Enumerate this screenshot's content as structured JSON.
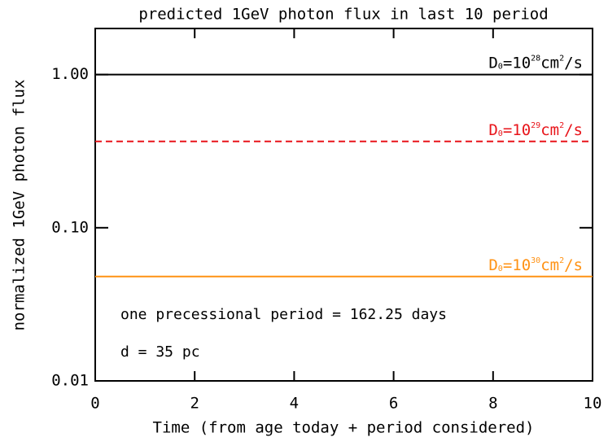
{
  "chart_data": {
    "type": "line",
    "title": "predicted 1GeV photon flux in last 10 period",
    "xlabel": "Time (from age today +  period considered)",
    "ylabel": "normalized 1GeV photon flux",
    "x": [
      0,
      10
    ],
    "xlim": [
      0,
      10
    ],
    "xticks": [
      0,
      2,
      4,
      6,
      8,
      10
    ],
    "ylim": [
      0.01,
      2
    ],
    "yticks": [
      0.01,
      {
        "value": 0.1,
        "label": "0.10"
      },
      {
        "value": 1,
        "label": "1.00"
      }
    ],
    "ylog": true,
    "series": [
      {
        "label": [
          "D",
          "0",
          "=10",
          "28",
          "cm",
          "2",
          "/s"
        ],
        "color": "#000000",
        "dashed": false,
        "values": [
          1,
          1
        ]
      },
      {
        "label": [
          "D",
          "0",
          "=10",
          "29",
          "cm",
          "2",
          "/s"
        ],
        "color": "#e8141a",
        "dashed": true,
        "values": [
          0.366,
          0.366
        ]
      },
      {
        "label": [
          "D",
          "0",
          "=10",
          "30",
          "cm",
          "2",
          "/s"
        ],
        "color": "#ff9214",
        "dashed": false,
        "values": [
          0.048,
          0.048
        ]
      }
    ],
    "annotations": [
      "one precessional period = 162.25 days",
      "d = 35 pc"
    ]
  }
}
